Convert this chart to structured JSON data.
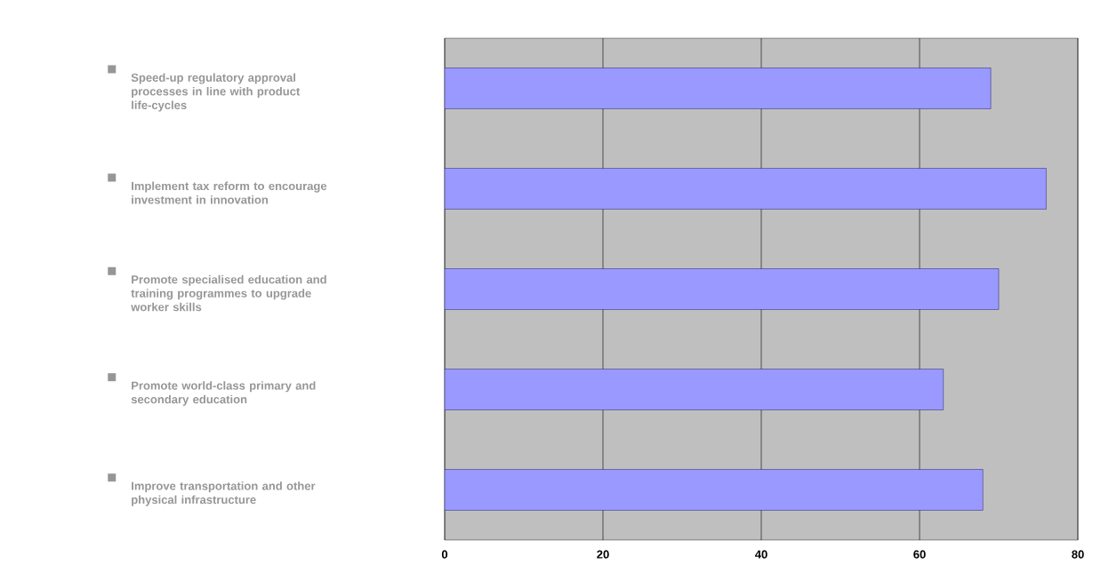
{
  "chart_data": {
    "type": "bar",
    "orientation": "horizontal",
    "categories": [
      "Speed-up regulatory approval processes in line with product life-cycles",
      "Implement tax reform to encourage investment in innovation",
      "Promote specialised education and training programmes to upgrade worker skills",
      "Promote world-class primary and secondary education",
      "Improve transportation and other physical infrastructure"
    ],
    "values": [
      69,
      76,
      70,
      63,
      68
    ],
    "color": "#9999ff",
    "xlim": [
      0,
      80
    ],
    "xticks": [
      0,
      20,
      40,
      60,
      80
    ],
    "grid": "x"
  }
}
